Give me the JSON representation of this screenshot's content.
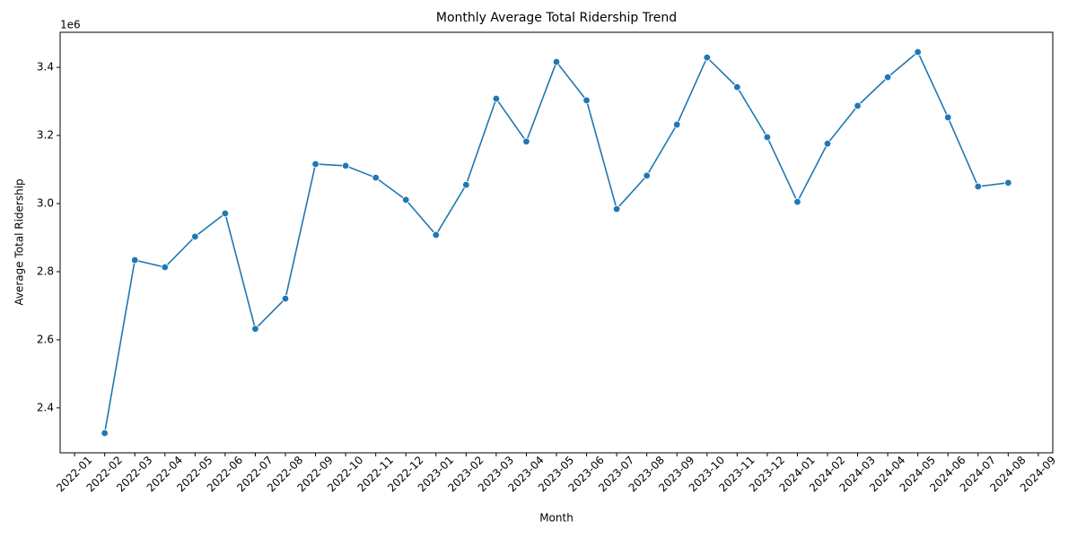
{
  "chart_data": {
    "type": "line",
    "title": "Monthly Average Total Ridership Trend",
    "x_label": "Month",
    "y_label": "Average Total Ridership",
    "y_offset_label": "1e6",
    "x": [
      "2022-02",
      "2022-03",
      "2022-04",
      "2022-05",
      "2022-06",
      "2022-07",
      "2022-08",
      "2022-09",
      "2022-10",
      "2022-11",
      "2022-12",
      "2023-01",
      "2023-02",
      "2023-03",
      "2023-04",
      "2023-05",
      "2023-06",
      "2023-07",
      "2023-08",
      "2023-09",
      "2023-10",
      "2023-11",
      "2023-12",
      "2024-01",
      "2024-02",
      "2024-03",
      "2024-04",
      "2024-05",
      "2024-06",
      "2024-07",
      "2024-08"
    ],
    "values": [
      2.326,
      2.834,
      2.813,
      2.903,
      2.971,
      2.632,
      2.721,
      3.116,
      3.111,
      3.076,
      3.011,
      2.908,
      3.055,
      3.308,
      3.182,
      3.416,
      3.303,
      2.984,
      3.082,
      3.232,
      3.429,
      3.342,
      3.195,
      3.005,
      3.176,
      3.287,
      3.371,
      3.445,
      3.253,
      3.05,
      3.061
    ],
    "color": "#1f77b4",
    "markers": true,
    "grid": false,
    "ylim": [
      2.268,
      3.503
    ],
    "yticks": [
      2.4,
      2.6,
      2.8,
      {
        "value": 3,
        "label": "3.0"
      },
      3.2,
      3.4
    ],
    "xticks": [
      "2022-01",
      "2022-02",
      "2022-03",
      "2022-04",
      "2022-05",
      "2022-06",
      "2022-07",
      "2022-08",
      "2022-09",
      "2022-10",
      "2022-11",
      "2022-12",
      "2023-01",
      "2023-02",
      "2023-03",
      "2023-04",
      "2023-05",
      "2023-06",
      "2023-07",
      "2023-08",
      "2023-09",
      "2023-10",
      "2023-11",
      "2023-12",
      "2024-01",
      "2024-02",
      "2024-03",
      "2024-04",
      "2024-05",
      "2024-06",
      "2024-07",
      "2024-08",
      "2024-09"
    ]
  }
}
